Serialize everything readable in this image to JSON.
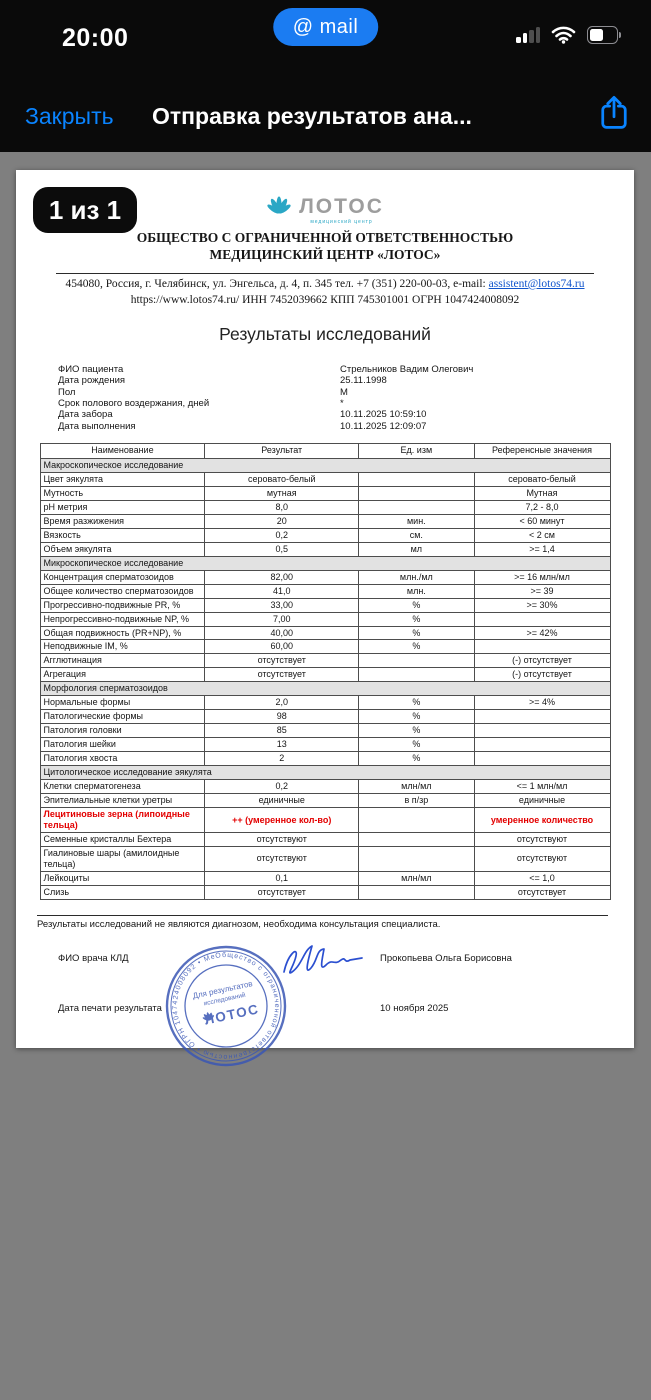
{
  "status_bar": {
    "time": "20:00",
    "app_badge": "@ mail",
    "battery_percent": 50,
    "signal_bars_filled": 2
  },
  "nav_bar": {
    "close_label": "Закрыть",
    "title": "Отправка результатов ана..."
  },
  "page_badge": "1 из 1",
  "letterhead": {
    "logo_text": "ЛОТОС",
    "logo_subtext": "медицинский центр",
    "org_line1": "ОБЩЕСТВО С ОГРАНИЧЕННОЙ ОТВЕТСТВЕННОСТЬЮ",
    "org_line2": "МЕДИЦИНСКИЙ ЦЕНТР «ЛОТОС»",
    "address_prefix": "454080, Россия, г. Челябинск, ул. Энгельса, д. 4, п. 345 тел. +7 (351) 220-00-03, e-mail: ",
    "email": "assistent@lotos74.ru",
    "info_line": "https://www.lotos74.ru/   ИНН 7452039662   КПП 745301001   ОГРН 1047424008092"
  },
  "document": {
    "title": "Результаты исследований",
    "patient": [
      {
        "label": "ФИО пациента",
        "value": "Стрельников Вадим Олегович"
      },
      {
        "label": "Дата рождения",
        "value": "25.11.1998"
      },
      {
        "label": "Пол",
        "value": "М"
      },
      {
        "label": "Срок полового воздержания, дней",
        "value": "*"
      },
      {
        "label": "Дата забора",
        "value": "10.11.2025 10:59:10"
      },
      {
        "label": "Дата выполнения",
        "value": "10.11.2025 12:09:07"
      }
    ],
    "table": {
      "headers": [
        "Наименование",
        "Результат",
        "Ед. изм",
        "Референсные значения"
      ],
      "rows": [
        {
          "type": "section",
          "name": "Макроскопическое исследование"
        },
        {
          "type": "row",
          "name": "Цвет эякулята",
          "result": "серовато-белый",
          "unit": "",
          "ref": "серовато-белый"
        },
        {
          "type": "row",
          "name": "Мутность",
          "result": "мутная",
          "unit": "",
          "ref": "Мутная"
        },
        {
          "type": "row",
          "name": "pH метрия",
          "result": "8,0",
          "unit": "",
          "ref": "7,2 - 8,0"
        },
        {
          "type": "row",
          "name": "Время разжижения",
          "result": "20",
          "unit": "мин.",
          "ref": "< 60 минут"
        },
        {
          "type": "row",
          "name": "Вязкость",
          "result": "0,2",
          "unit": "см.",
          "ref": "< 2 см"
        },
        {
          "type": "row",
          "name": "Объем эякулята",
          "result": "0,5",
          "unit": "мл",
          "ref": ">= 1,4"
        },
        {
          "type": "section",
          "name": "Микроскопическое исследование"
        },
        {
          "type": "row",
          "name": "Концентрация сперматозоидов",
          "result": "82,00",
          "unit": "млн./мл",
          "ref": ">= 16 млн/мл"
        },
        {
          "type": "row",
          "name": "Общее количество сперматозоидов",
          "result": "41,0",
          "unit": "млн.",
          "ref": ">= 39"
        },
        {
          "type": "row",
          "name": "Прогрессивно-подвижные PR, %",
          "result": "33,00",
          "unit": "%",
          "ref": ">= 30%"
        },
        {
          "type": "row",
          "name": "Непрогрессивно-подвижные NP, %",
          "result": "7,00",
          "unit": "%",
          "ref": ""
        },
        {
          "type": "row",
          "name": "Общая подвижность (PR+NP), %",
          "result": "40,00",
          "unit": "%",
          "ref": ">= 42%"
        },
        {
          "type": "row",
          "name": "Неподвижные IM, %",
          "result": "60,00",
          "unit": "%",
          "ref": ""
        },
        {
          "type": "row",
          "name": "Агглютинация",
          "result": "отсутствует",
          "unit": "",
          "ref": "(-) отсутствует"
        },
        {
          "type": "row",
          "name": "Агрегация",
          "result": "отсутствует",
          "unit": "",
          "ref": "(-) отсутствует"
        },
        {
          "type": "section",
          "name": "Морфология сперматозоидов"
        },
        {
          "type": "row",
          "name": "Нормальные формы",
          "result": "2,0",
          "unit": "%",
          "ref": ">= 4%"
        },
        {
          "type": "row",
          "name": "Патологические формы",
          "result": "98",
          "unit": "%",
          "ref": ""
        },
        {
          "type": "row",
          "name": "Патология головки",
          "result": "85",
          "unit": "%",
          "ref": ""
        },
        {
          "type": "row",
          "name": "Патология шейки",
          "result": "13",
          "unit": "%",
          "ref": ""
        },
        {
          "type": "row",
          "name": "Патология хвоста",
          "result": "2",
          "unit": "%",
          "ref": ""
        },
        {
          "type": "section",
          "name": "Цитологическое исследование эякулята"
        },
        {
          "type": "row",
          "name": "Клетки сперматогенеза",
          "result": "0,2",
          "unit": "млн/мл",
          "ref": "<= 1 млн/мл"
        },
        {
          "type": "row",
          "name": "Эпителиальные клетки уретры",
          "result": "единичные",
          "unit": "в п/зр",
          "ref": "единичные"
        },
        {
          "type": "row",
          "name": "Лецитиновые зерна (липоидные тельца)",
          "result": "++ (умеренное кол-во)",
          "unit": "",
          "ref": "умеренное количество",
          "highlight": true
        },
        {
          "type": "row",
          "name": "Семенные кристаллы Бехтера",
          "result": "отсутствуют",
          "unit": "",
          "ref": "отсутствуют"
        },
        {
          "type": "row",
          "name": "Гиалиновые шары (амилоидные тельца)",
          "result": "отсутствуют",
          "unit": "",
          "ref": "отсутствуют"
        },
        {
          "type": "row",
          "name": "Лейкоциты",
          "result": "0,1",
          "unit": "млн/мл",
          "ref": "<= 1,0"
        },
        {
          "type": "row",
          "name": "Слизь",
          "result": "отсутствует",
          "unit": "",
          "ref": "отсутствует"
        }
      ]
    },
    "disclaimer": "Результаты исследований не являются диагнозом, необходима консультация специалиста.",
    "footer": {
      "doctor_label": "ФИО врача КЛД",
      "doctor_name": "Прокопьева Ольга Борисовна",
      "date_label": "Дата печати результата",
      "date_value": "10 ноября 2025"
    },
    "stamp": {
      "ring_text": "Общество с ограниченной ответственностью • ОГРН 1047424008092 • Медицинский центр «Лотос» • ИНН 7452039662 • г. Челябинск",
      "center_line1": "Для результатов",
      "center_line2": "исследований",
      "center_logo": "ЛОТОС"
    }
  },
  "colors": {
    "ios_blue": "#0a84ff",
    "mail_pill_blue": "#1b7cf2",
    "logo_teal": "#2aa7c5",
    "stamp_blue": "#3a57b5",
    "alert_red": "#e30000",
    "section_gray": "#e2e2e2",
    "backdrop_gray": "#7f7f7f"
  }
}
